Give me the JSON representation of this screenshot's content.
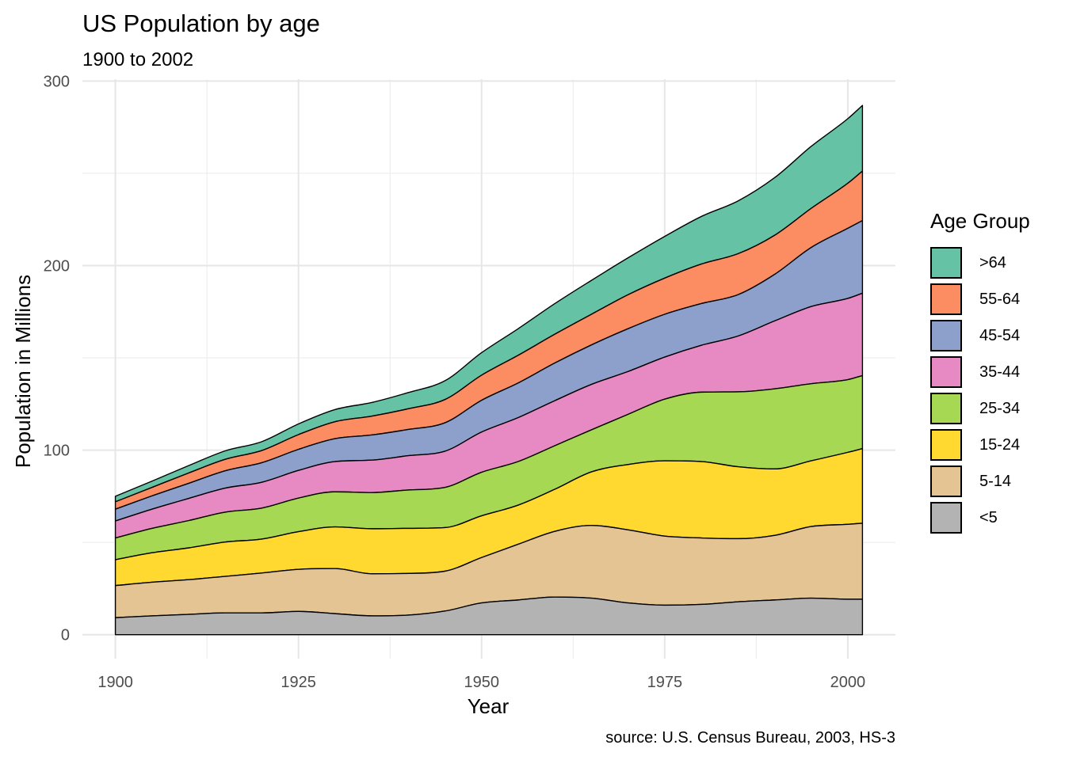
{
  "chart_data": {
    "type": "area",
    "stacked": true,
    "title": "US Population by age",
    "subtitle": "1900 to 2002",
    "caption": "source: U.S. Census Bureau, 2003, HS-3",
    "xlabel": "Year",
    "ylabel": "Population in Millions",
    "xlim": [
      1895.5,
      2006.5
    ],
    "ylim": [
      -13,
      301
    ],
    "x_ticks": [
      1900,
      1925,
      1950,
      1975,
      2000
    ],
    "y_ticks": [
      0,
      100,
      200,
      300
    ],
    "legend_title": "Age Group",
    "legend_position": "right",
    "grid": true,
    "x": [
      1900,
      1905,
      1910,
      1915,
      1920,
      1925,
      1930,
      1935,
      1940,
      1945,
      1950,
      1955,
      1960,
      1965,
      1970,
      1975,
      1980,
      1985,
      1990,
      1995,
      2000,
      2002
    ],
    "series": [
      {
        "name": "<5",
        "color": "#b3b3b3",
        "values": [
          9.2,
          10.2,
          11.0,
          11.8,
          11.8,
          12.6,
          11.4,
          10.2,
          10.6,
          12.8,
          17.2,
          18.8,
          20.4,
          19.8,
          17.2,
          16.0,
          16.4,
          17.8,
          18.8,
          19.8,
          19.2,
          19.2
        ]
      },
      {
        "name": "5-14",
        "color": "#e5c494",
        "values": [
          17.4,
          18.2,
          18.8,
          19.8,
          21.6,
          22.8,
          24.4,
          22.8,
          22.6,
          21.6,
          24.6,
          30.2,
          35.6,
          39.4,
          39.6,
          37.4,
          36.0,
          34.2,
          35.0,
          38.8,
          40.6,
          41.2
        ]
      },
      {
        "name": "15-24",
        "color": "#ffd92f",
        "values": [
          14.0,
          16.0,
          17.2,
          18.6,
          18.4,
          20.4,
          22.6,
          24.4,
          24.4,
          23.6,
          22.6,
          21.2,
          22.8,
          29.0,
          35.4,
          40.8,
          41.4,
          39.0,
          36.0,
          35.6,
          39.0,
          40.4
        ]
      },
      {
        "name": "25-34",
        "color": "#a6d854",
        "values": [
          11.8,
          13.2,
          14.8,
          16.2,
          16.8,
          18.2,
          19.0,
          19.6,
          20.8,
          21.8,
          23.6,
          23.6,
          23.6,
          22.8,
          27.2,
          33.4,
          37.6,
          40.6,
          43.4,
          41.8,
          39.4,
          39.6
        ]
      },
      {
        "name": "35-44",
        "color": "#e78ac3",
        "values": [
          9.2,
          10.4,
          12.0,
          13.0,
          14.0,
          15.0,
          16.4,
          17.6,
          18.6,
          19.6,
          21.8,
          23.8,
          24.4,
          24.6,
          23.2,
          22.8,
          25.4,
          30.2,
          36.8,
          41.8,
          44.0,
          44.6
        ]
      },
      {
        "name": "45-54",
        "color": "#8da0cb",
        "values": [
          6.4,
          7.2,
          8.2,
          9.4,
          10.6,
          11.4,
          12.4,
          13.6,
          14.2,
          15.4,
          17.2,
          18.8,
          20.4,
          21.4,
          23.2,
          23.2,
          22.6,
          22.4,
          25.2,
          32.0,
          38.0,
          39.4
        ]
      },
      {
        "name": "55-64",
        "color": "#fc8d62",
        "values": [
          4.0,
          4.6,
          5.6,
          6.2,
          6.6,
          8.0,
          9.2,
          10.2,
          11.2,
          12.6,
          13.6,
          15.0,
          15.6,
          16.6,
          18.4,
          19.6,
          21.4,
          22.2,
          21.2,
          21.2,
          24.4,
          26.8
        ]
      },
      {
        "name": ">64",
        "color": "#66c2a5",
        "values": [
          3.0,
          3.4,
          4.0,
          4.6,
          4.8,
          5.8,
          6.6,
          7.4,
          8.8,
          10.2,
          12.2,
          14.4,
          16.6,
          18.4,
          20.0,
          22.6,
          25.8,
          28.6,
          31.2,
          33.6,
          35.0,
          35.6
        ]
      }
    ]
  }
}
